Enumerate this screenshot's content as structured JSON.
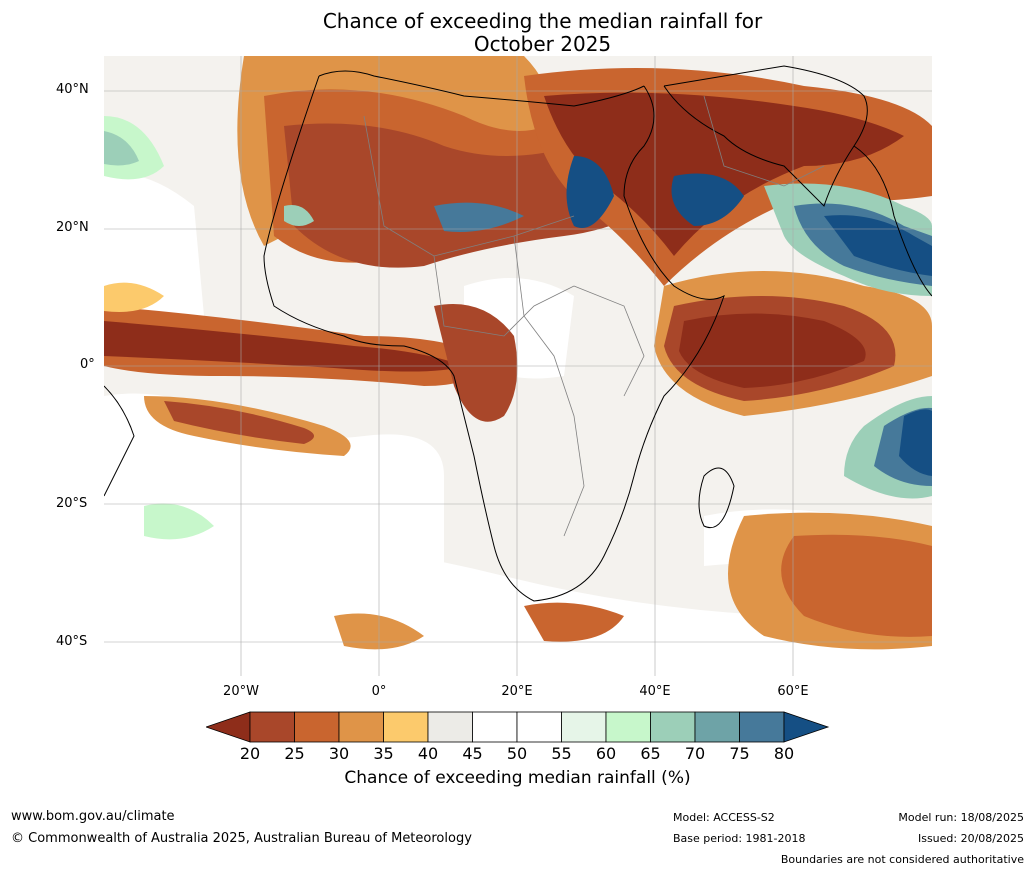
{
  "title_line1": "Chance of exceeding the median rainfall for",
  "title_line2": "October 2025",
  "map": {
    "lat_labels": [
      "40°N",
      "20°N",
      "0°",
      "20°S",
      "40°S"
    ],
    "lon_labels": [
      "20°W",
      "0°",
      "20°E",
      "40°E",
      "60°E"
    ],
    "extent": {
      "lon_min": -40,
      "lon_max": 80,
      "lat_min": -45,
      "lat_max": 45
    },
    "gridlines": true
  },
  "legend": {
    "ticks": [
      "20",
      "25",
      "30",
      "35",
      "40",
      "45",
      "50",
      "55",
      "60",
      "65",
      "70",
      "75",
      "80"
    ],
    "colors": [
      "#8e2d1a",
      "#a9472a",
      "#c9652f",
      "#df9448",
      "#fcca6c",
      "#ecebe7",
      "#ffffff",
      "#ffffff",
      "#e6f5e8",
      "#c7f7cb",
      "#9ccfb8",
      "#6ea3a7",
      "#46799a",
      "#154f84"
    ],
    "label": "Chance of exceeding median rainfall (%)"
  },
  "footer": {
    "website": "www.bom.gov.au/climate",
    "copyright": "© Commonwealth of Australia 2025, Australian Bureau of Meteorology",
    "model": "Model: ACCESS-S2",
    "base_period": "Base period: 1981-2018",
    "model_run": "Model run: 18/08/2025",
    "issued": "Issued: 20/08/2025",
    "disclaimer": "Boundaries are not considered authoritative"
  }
}
